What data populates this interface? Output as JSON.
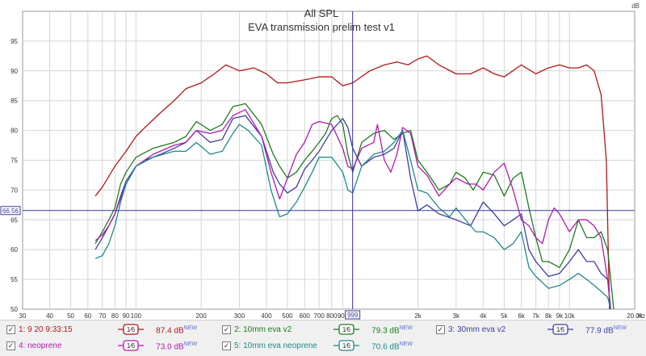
{
  "chart_data": {
    "type": "line",
    "title": "All SPL",
    "subtitle": "EVA transmission prelim test v1",
    "ylabel": "dB",
    "xunit": "Hz",
    "xscale": "log",
    "xlim": [
      30,
      20000
    ],
    "ylim": [
      50,
      100
    ],
    "grid": true,
    "cursor": {
      "x": 999,
      "x_label": "999",
      "y": 66.56,
      "y_label": "66.56"
    },
    "x_ticks": [
      {
        "v": 30,
        "label": "30"
      },
      {
        "v": 40,
        "label": "40"
      },
      {
        "v": 50,
        "label": "50"
      },
      {
        "v": 60,
        "label": "60"
      },
      {
        "v": 70,
        "label": "70"
      },
      {
        "v": 80,
        "label": "80"
      },
      {
        "v": 90,
        "label": "90"
      },
      {
        "v": 100,
        "label": "100"
      },
      {
        "v": 200,
        "label": "200"
      },
      {
        "v": 300,
        "label": "300"
      },
      {
        "v": 400,
        "label": "400"
      },
      {
        "v": 500,
        "label": "500"
      },
      {
        "v": 600,
        "label": "600"
      },
      {
        "v": 700,
        "label": "700"
      },
      {
        "v": 800,
        "label": "800"
      },
      {
        "v": 900,
        "label": "900"
      },
      {
        "v": 2000,
        "label": "2k"
      },
      {
        "v": 3000,
        "label": "3k"
      },
      {
        "v": 4000,
        "label": "4k"
      },
      {
        "v": 5000,
        "label": "5k"
      },
      {
        "v": 6000,
        "label": "6k"
      },
      {
        "v": 7000,
        "label": "7k"
      },
      {
        "v": 8000,
        "label": "8k"
      },
      {
        "v": 9000,
        "label": "9k"
      },
      {
        "v": 10000,
        "label": "10k"
      },
      {
        "v": 20000,
        "label": "20.0k"
      }
    ],
    "y_ticks": [
      {
        "v": 55,
        "label": "55"
      },
      {
        "v": 60,
        "label": "60"
      },
      {
        "v": 65,
        "label": "65"
      },
      {
        "v": 70,
        "label": "70"
      },
      {
        "v": 75,
        "label": "75"
      },
      {
        "v": 80,
        "label": "80"
      },
      {
        "v": 85,
        "label": "85"
      },
      {
        "v": 90,
        "label": "90"
      },
      {
        "v": 95,
        "label": "95"
      }
    ],
    "series": [
      {
        "name": "1: 9 20 9:33:15",
        "color": "#b01818",
        "value": "87.4 dB",
        "smoothing": "1/6",
        "points": [
          [
            65,
            69
          ],
          [
            70,
            70.5
          ],
          [
            80,
            74
          ],
          [
            90,
            76.5
          ],
          [
            100,
            79
          ],
          [
            110,
            80.5
          ],
          [
            130,
            83
          ],
          [
            150,
            85
          ],
          [
            170,
            87
          ],
          [
            200,
            88
          ],
          [
            230,
            89.5
          ],
          [
            260,
            91
          ],
          [
            300,
            90
          ],
          [
            350,
            90.5
          ],
          [
            400,
            89.5
          ],
          [
            450,
            88
          ],
          [
            500,
            88
          ],
          [
            600,
            88.5
          ],
          [
            700,
            89
          ],
          [
            800,
            89
          ],
          [
            900,
            87.5
          ],
          [
            1000,
            88
          ],
          [
            1200,
            90
          ],
          [
            1400,
            91
          ],
          [
            1600,
            91.5
          ],
          [
            1800,
            91
          ],
          [
            2000,
            92
          ],
          [
            2200,
            92.5
          ],
          [
            2500,
            91
          ],
          [
            3000,
            89.5
          ],
          [
            3500,
            89.5
          ],
          [
            4000,
            90.5
          ],
          [
            4500,
            89.5
          ],
          [
            5000,
            89
          ],
          [
            6000,
            91
          ],
          [
            7000,
            89.5
          ],
          [
            8000,
            90.5
          ],
          [
            9000,
            91
          ],
          [
            10000,
            90.5
          ],
          [
            11000,
            90.5
          ],
          [
            12000,
            91
          ],
          [
            13000,
            90
          ],
          [
            14000,
            86
          ],
          [
            14800,
            75
          ],
          [
            15300,
            50
          ]
        ]
      },
      {
        "name": "2: 10mm eva v2",
        "color": "#1e7b1e",
        "value": "79.3 dB",
        "smoothing": "1/6",
        "points": [
          [
            65,
            61
          ],
          [
            70,
            63
          ],
          [
            75,
            65
          ],
          [
            80,
            67
          ],
          [
            85,
            71
          ],
          [
            90,
            73
          ],
          [
            100,
            75.5
          ],
          [
            120,
            77
          ],
          [
            150,
            78
          ],
          [
            170,
            79
          ],
          [
            190,
            81.5
          ],
          [
            220,
            80
          ],
          [
            250,
            81
          ],
          [
            280,
            84
          ],
          [
            320,
            84.5
          ],
          [
            380,
            81
          ],
          [
            430,
            76
          ],
          [
            460,
            74
          ],
          [
            500,
            72
          ],
          [
            550,
            73
          ],
          [
            600,
            75
          ],
          [
            650,
            76.5
          ],
          [
            700,
            78
          ],
          [
            750,
            79.5
          ],
          [
            800,
            82
          ],
          [
            850,
            82.5
          ],
          [
            900,
            81
          ],
          [
            950,
            76
          ],
          [
            1000,
            73
          ],
          [
            1100,
            78
          ],
          [
            1250,
            79.5
          ],
          [
            1400,
            80
          ],
          [
            1550,
            78.5
          ],
          [
            1700,
            79.5
          ],
          [
            1850,
            80
          ],
          [
            2000,
            75
          ],
          [
            2200,
            73
          ],
          [
            2500,
            70
          ],
          [
            2800,
            71
          ],
          [
            3000,
            73
          ],
          [
            3300,
            72
          ],
          [
            3600,
            70
          ],
          [
            4000,
            73
          ],
          [
            4500,
            72.5
          ],
          [
            5000,
            69
          ],
          [
            5500,
            72
          ],
          [
            6000,
            73
          ],
          [
            6500,
            67
          ],
          [
            7000,
            62
          ],
          [
            7500,
            58
          ],
          [
            8000,
            58
          ],
          [
            9000,
            57
          ],
          [
            10000,
            60
          ],
          [
            11000,
            65
          ],
          [
            12000,
            62
          ],
          [
            13000,
            62
          ],
          [
            14000,
            63
          ],
          [
            15000,
            60
          ],
          [
            16000,
            50
          ]
        ]
      },
      {
        "name": "3: 30mm eva v2",
        "color": "#3d3da8",
        "value": "77.9 dB",
        "smoothing": "1/6",
        "points": [
          [
            65,
            60
          ],
          [
            70,
            62
          ],
          [
            75,
            64
          ],
          [
            80,
            66
          ],
          [
            85,
            69
          ],
          [
            90,
            71.5
          ],
          [
            100,
            74
          ],
          [
            110,
            75
          ],
          [
            130,
            76
          ],
          [
            150,
            77
          ],
          [
            170,
            78
          ],
          [
            190,
            80
          ],
          [
            220,
            78
          ],
          [
            250,
            78.5
          ],
          [
            280,
            82
          ],
          [
            320,
            82.5
          ],
          [
            380,
            79
          ],
          [
            430,
            73
          ],
          [
            460,
            71
          ],
          [
            500,
            69.5
          ],
          [
            550,
            70.5
          ],
          [
            600,
            73.5
          ],
          [
            650,
            75
          ],
          [
            700,
            76.5
          ],
          [
            800,
            80
          ],
          [
            900,
            82
          ],
          [
            950,
            80.5
          ],
          [
            1000,
            77
          ],
          [
            1100,
            74
          ],
          [
            1250,
            75.5
          ],
          [
            1400,
            76
          ],
          [
            1550,
            77
          ],
          [
            1700,
            80
          ],
          [
            1850,
            72
          ],
          [
            2000,
            66.5
          ],
          [
            2200,
            67.5
          ],
          [
            2500,
            66
          ],
          [
            3000,
            65
          ],
          [
            3500,
            64
          ],
          [
            4000,
            68
          ],
          [
            4500,
            66
          ],
          [
            5000,
            64
          ],
          [
            5500,
            65
          ],
          [
            6000,
            66
          ],
          [
            6500,
            60
          ],
          [
            7000,
            58
          ],
          [
            8000,
            55.5
          ],
          [
            9000,
            56
          ],
          [
            10000,
            58
          ],
          [
            11000,
            60
          ],
          [
            12000,
            58
          ],
          [
            13000,
            58
          ],
          [
            14000,
            56
          ],
          [
            15000,
            55
          ],
          [
            15500,
            50
          ]
        ]
      },
      {
        "name": "4: neoprene",
        "color": "#b01ab0",
        "value": "73.0 dB",
        "smoothing": "1/6",
        "points": [
          [
            65,
            61.5
          ],
          [
            70,
            62.5
          ],
          [
            75,
            64
          ],
          [
            80,
            66
          ],
          [
            90,
            71
          ],
          [
            100,
            74
          ],
          [
            120,
            76
          ],
          [
            150,
            77.5
          ],
          [
            170,
            78
          ],
          [
            190,
            80
          ],
          [
            220,
            79.5
          ],
          [
            250,
            80
          ],
          [
            280,
            82.5
          ],
          [
            320,
            83.5
          ],
          [
            380,
            79
          ],
          [
            420,
            73
          ],
          [
            460,
            68.5
          ],
          [
            500,
            72
          ],
          [
            550,
            76
          ],
          [
            600,
            78
          ],
          [
            650,
            81
          ],
          [
            700,
            81.5
          ],
          [
            800,
            81
          ],
          [
            900,
            77
          ],
          [
            950,
            74
          ],
          [
            1000,
            73.5
          ],
          [
            1100,
            77
          ],
          [
            1250,
            78
          ],
          [
            1300,
            81
          ],
          [
            1400,
            75
          ],
          [
            1500,
            73
          ],
          [
            1600,
            76
          ],
          [
            1700,
            80.5
          ],
          [
            1850,
            79.5
          ],
          [
            2000,
            74
          ],
          [
            2200,
            72.5
          ],
          [
            2500,
            69
          ],
          [
            2800,
            71
          ],
          [
            3000,
            72
          ],
          [
            3400,
            71
          ],
          [
            3700,
            71
          ],
          [
            4000,
            70
          ],
          [
            4500,
            73
          ],
          [
            5000,
            74.5
          ],
          [
            5500,
            70
          ],
          [
            6000,
            65
          ],
          [
            6500,
            64
          ],
          [
            7000,
            62
          ],
          [
            7500,
            61
          ],
          [
            8000,
            65
          ],
          [
            8500,
            67
          ],
          [
            9000,
            66
          ],
          [
            10000,
            63
          ],
          [
            11000,
            65
          ],
          [
            12000,
            65
          ],
          [
            13000,
            64
          ],
          [
            14000,
            62
          ],
          [
            15000,
            55
          ],
          [
            15500,
            50
          ]
        ]
      },
      {
        "name": "5: 10mm eva neoprene",
        "color": "#1e8a8a",
        "value": "70.6 dB",
        "smoothing": "1/6",
        "points": [
          [
            65,
            58.5
          ],
          [
            70,
            59
          ],
          [
            75,
            61
          ],
          [
            80,
            64
          ],
          [
            85,
            68
          ],
          [
            90,
            71
          ],
          [
            100,
            74
          ],
          [
            120,
            75.5
          ],
          [
            150,
            76.5
          ],
          [
            170,
            76.5
          ],
          [
            190,
            78
          ],
          [
            220,
            76
          ],
          [
            250,
            76.5
          ],
          [
            280,
            79.5
          ],
          [
            300,
            81
          ],
          [
            330,
            80
          ],
          [
            380,
            77.5
          ],
          [
            420,
            70
          ],
          [
            460,
            65.5
          ],
          [
            500,
            66
          ],
          [
            550,
            68
          ],
          [
            600,
            70.5
          ],
          [
            650,
            73
          ],
          [
            700,
            75.5
          ],
          [
            800,
            75.5
          ],
          [
            900,
            73
          ],
          [
            950,
            70
          ],
          [
            1000,
            69.5
          ],
          [
            1100,
            74
          ],
          [
            1250,
            76
          ],
          [
            1400,
            76.5
          ],
          [
            1550,
            78
          ],
          [
            1700,
            80
          ],
          [
            1850,
            75
          ],
          [
            2000,
            70
          ],
          [
            2200,
            69.5
          ],
          [
            2500,
            67
          ],
          [
            2800,
            65.5
          ],
          [
            3000,
            67
          ],
          [
            3400,
            64.5
          ],
          [
            3700,
            63
          ],
          [
            4000,
            63
          ],
          [
            4500,
            62
          ],
          [
            5000,
            60
          ],
          [
            5500,
            61
          ],
          [
            6000,
            63
          ],
          [
            6500,
            57
          ],
          [
            7000,
            55.5
          ],
          [
            8000,
            53.5
          ],
          [
            9000,
            54
          ],
          [
            10000,
            55
          ],
          [
            11000,
            56
          ],
          [
            12000,
            55
          ],
          [
            13000,
            54
          ],
          [
            14000,
            53
          ],
          [
            15000,
            52
          ],
          [
            15500,
            50
          ]
        ]
      }
    ]
  },
  "legend_check_mark": "✓",
  "legend_sym_text": "1⁄6",
  "legend_new_tag": "NEW"
}
